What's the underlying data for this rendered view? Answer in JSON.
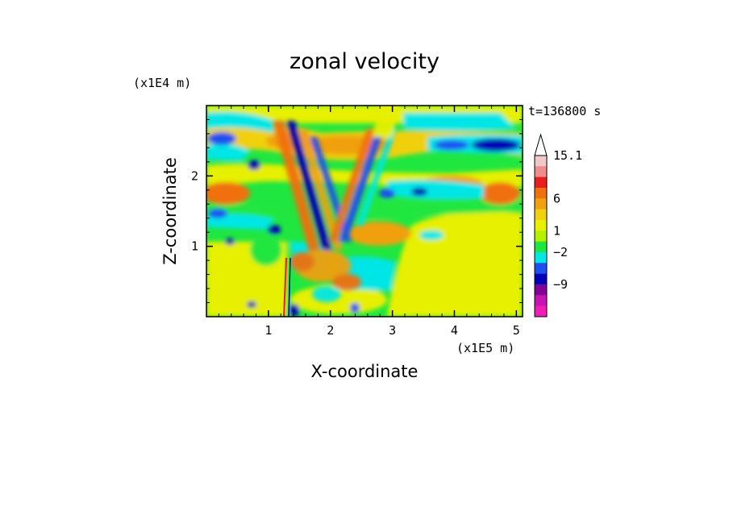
{
  "chart_data": {
    "type": "heatmap",
    "title": "zonal velocity",
    "xlabel": "X-coordinate",
    "ylabel": "Z-coordinate",
    "x_unit": "(x1E5 m)",
    "y_unit": "(x1E4 m)",
    "time_label": "t=136800 s",
    "xlim": [
      0,
      5.1
    ],
    "ylim": [
      0,
      3.0
    ],
    "x_ticks": [
      "1",
      "2",
      "3",
      "4",
      "5"
    ],
    "y_ticks": [
      "1",
      "2"
    ],
    "colorbar": {
      "labels": [
        "15.1",
        "6",
        "1",
        "-2",
        "-9"
      ],
      "colors": [
        "#f0c8c8",
        "#f08c8c",
        "#e61e1e",
        "#f07010",
        "#f0a010",
        "#f0d010",
        "#e6f000",
        "#b4f000",
        "#20e640",
        "#00e6e6",
        "#1e50f0",
        "#0000b4",
        "#820096",
        "#c814b4",
        "#f01eb4"
      ],
      "extend_top": true
    },
    "grid": false
  }
}
